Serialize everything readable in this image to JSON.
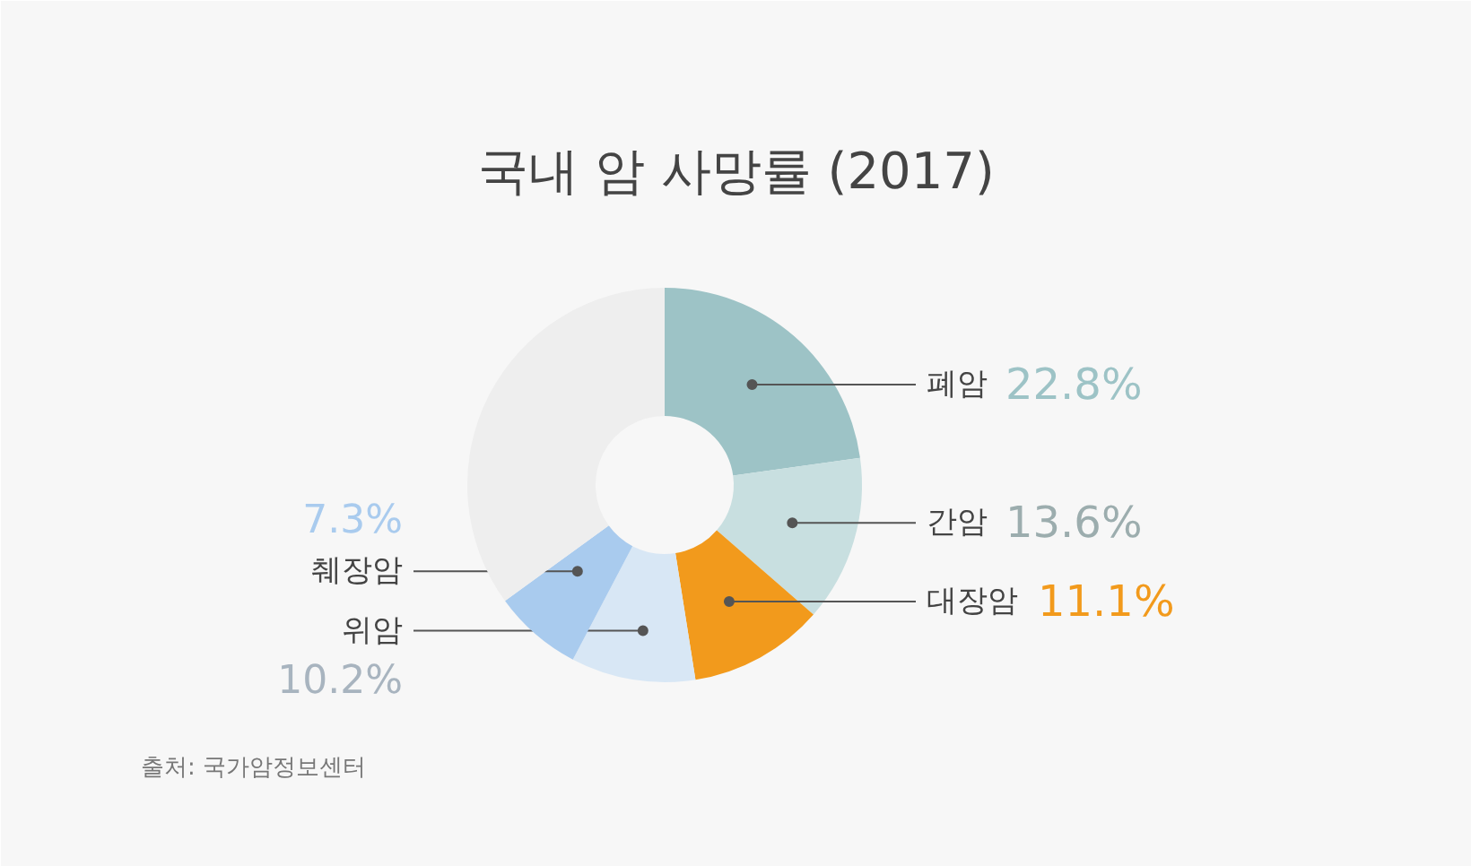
{
  "chart_data": {
    "type": "donut",
    "title": "국내 암 사망률 (2017)",
    "categories": [
      "폐암",
      "간암",
      "대장암",
      "위암",
      "췌장암",
      null
    ],
    "values": [
      22.8,
      13.6,
      11.1,
      10.2,
      7.3,
      35.0
    ],
    "value_labels": [
      "22.8%",
      "13.6%",
      "11.1%",
      "10.2%",
      "7.3%",
      null
    ],
    "colors": [
      "#9dc3c6",
      "#c8dfe0",
      "#f29a1c",
      "#d8e7f5",
      "#a9cbee",
      "#eeeeee"
    ],
    "annotations": [
      "출처: 국가암정보센터"
    ]
  }
}
